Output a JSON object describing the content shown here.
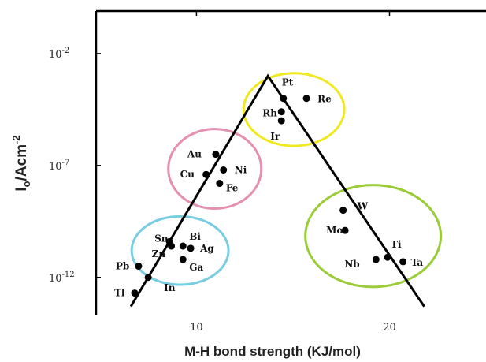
{
  "chart_data": {
    "type": "scatter",
    "xlabel": "M-H bond strength (KJ/mol)",
    "ylabel": {
      "base": "I",
      "sub": "o",
      "rest": "/Acm",
      "sup": "-2"
    },
    "x_ticks": [
      "10",
      "20"
    ],
    "y_ticks": [
      {
        "base": "10",
        "sup": "-2"
      },
      {
        "base": "10",
        "sup": "-7"
      },
      {
        "base": "10",
        "sup": "-12"
      }
    ],
    "xlim": [
      4.8,
      25.0
    ],
    "ylim_log10": [
      -13.7,
      -0.1
    ],
    "grid": false,
    "points": [
      {
        "label": "Pt",
        "x": 14.5,
        "y": -4.0
      },
      {
        "label": "Re",
        "x": 15.7,
        "y": -4.0
      },
      {
        "label": "Rh",
        "x": 14.4,
        "y": -4.6
      },
      {
        "label": "Ir",
        "x": 14.4,
        "y": -5.0
      },
      {
        "label": "Au",
        "x": 11.0,
        "y": -6.5
      },
      {
        "label": "Ni",
        "x": 11.4,
        "y": -7.2
      },
      {
        "label": "Cu",
        "x": 10.5,
        "y": -7.4
      },
      {
        "label": "Fe",
        "x": 11.2,
        "y": -7.8
      },
      {
        "label": "W",
        "x": 17.6,
        "y": -9.0
      },
      {
        "label": "Mo",
        "x": 17.7,
        "y": -9.9
      },
      {
        "label": "Sn",
        "x": 8.6,
        "y": -10.4
      },
      {
        "label": "Bi",
        "x": 9.3,
        "y": -10.6
      },
      {
        "label": "Zn",
        "x": 8.7,
        "y": -10.6
      },
      {
        "label": "Ag",
        "x": 9.7,
        "y": -10.7
      },
      {
        "label": "Ga",
        "x": 9.3,
        "y": -11.2
      },
      {
        "label": "Ti",
        "x": 19.9,
        "y": -11.1
      },
      {
        "label": "Nb",
        "x": 19.3,
        "y": -11.2
      },
      {
        "label": "Ta",
        "x": 20.7,
        "y": -11.3
      },
      {
        "label": "Pb",
        "x": 7.0,
        "y": -11.5
      },
      {
        "label": "In",
        "x": 7.5,
        "y": -12.0
      },
      {
        "label": "Tl",
        "x": 6.8,
        "y": -12.7
      }
    ],
    "volcano_line": [
      {
        "x": 6.6,
        "y": -13.3
      },
      {
        "x": 13.7,
        "y": -3.0
      },
      {
        "x": 21.8,
        "y": -13.3
      }
    ],
    "group_circles": [
      {
        "color": "#f0e820",
        "members": [
          "Pt",
          "Re",
          "Rh",
          "Ir"
        ]
      },
      {
        "color": "#e590b0",
        "members": [
          "Au",
          "Ni",
          "Cu",
          "Fe"
        ]
      },
      {
        "color": "#78cde0",
        "members": [
          "Sn",
          "Bi",
          "Zn",
          "Ag",
          "Ga"
        ]
      },
      {
        "color": "#9acc38",
        "members": [
          "W",
          "Mo",
          "Ti",
          "Nb",
          "Ta"
        ]
      }
    ]
  }
}
